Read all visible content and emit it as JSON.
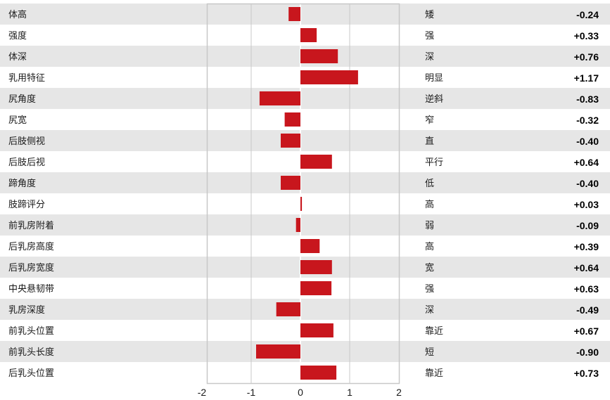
{
  "chart_data": {
    "type": "bar",
    "orientation": "horizontal",
    "categories": [
      "体高",
      "强度",
      "体深",
      "乳用特征",
      "尻角度",
      "尻宽",
      "后肢侧视",
      "后肢后视",
      "蹄角度",
      "肢蹄评分",
      "前乳房附着",
      "后乳房高度",
      "后乳房宽度",
      "中央悬韧带",
      "乳房深度",
      "前乳头位置",
      "前乳头长度",
      "后乳头位置"
    ],
    "right_labels": [
      "矮",
      "强",
      "深",
      "明显",
      "逆斜",
      "窄",
      "直",
      "平行",
      "低",
      "高",
      "弱",
      "高",
      "宽",
      "强",
      "深",
      "靠近",
      "短",
      "靠近"
    ],
    "values": [
      -0.24,
      0.33,
      0.76,
      1.17,
      -0.83,
      -0.32,
      -0.4,
      0.64,
      -0.4,
      0.03,
      -0.09,
      0.39,
      0.64,
      0.63,
      -0.49,
      0.67,
      -0.9,
      0.73
    ],
    "value_labels": [
      "-0.24",
      "+0.33",
      "+0.76",
      "+1.17",
      "-0.83",
      "-0.32",
      "-0.40",
      "+0.64",
      "-0.40",
      "+0.03",
      "-0.09",
      "+0.39",
      "+0.64",
      "+0.63",
      "-0.49",
      "+0.67",
      "-0.90",
      "+0.73"
    ],
    "x_ticks": [
      "-2",
      "-1",
      "0",
      "1",
      "2"
    ],
    "xlim": [
      -2,
      2
    ],
    "grid": true,
    "legend": "none",
    "colors": {
      "bar": "#c8161d",
      "row_band": "#e6e6e6",
      "frame": "#c8c8c8"
    }
  }
}
